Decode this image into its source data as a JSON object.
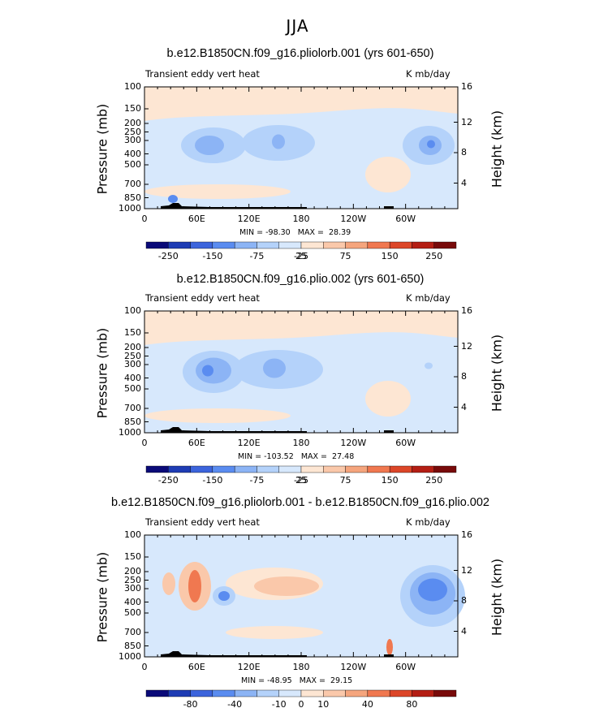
{
  "suptitle": "JJA",
  "colorbar_colors": [
    "#0a0a78",
    "#1e3cb4",
    "#3c64dc",
    "#5a8cf0",
    "#8cb4f5",
    "#b4d2fa",
    "#d7e8fc",
    "#fde6d3",
    "#fac8aa",
    "#f5a57d",
    "#f07850",
    "#dc4628",
    "#b41e14",
    "#780a0a"
  ],
  "chart_data": [
    {
      "type": "contour",
      "title": "b.e12.B1850CN.f09_g16.pliolorb.001 (yrs 601-650)",
      "left_label": "Transient eddy vert heat",
      "right_label": "K mb/day",
      "ylabel": "Pressure (mb)",
      "ylabel_right": "Height (km)",
      "y_ticks": [
        "100",
        "150",
        "200",
        "250",
        "300",
        "400",
        "500",
        "700",
        "850",
        "1000"
      ],
      "z_ticks": [
        "16",
        "12",
        "8",
        "4"
      ],
      "x_ticks": [
        "0",
        "60E",
        "120E",
        "180",
        "120W",
        "60W"
      ],
      "min_max": "MIN = -98.30   MAX =  28.39",
      "colorbar_labels": [
        "-250",
        "-150",
        "-75",
        "-25",
        "25",
        "75",
        "150",
        "250"
      ]
    },
    {
      "type": "contour",
      "title": "b.e12.B1850CN.f09_g16.plio.002 (yrs 601-650)",
      "left_label": "Transient eddy vert heat",
      "right_label": "K mb/day",
      "ylabel": "Pressure (mb)",
      "ylabel_right": "Height (km)",
      "y_ticks": [
        "100",
        "150",
        "200",
        "250",
        "300",
        "400",
        "500",
        "700",
        "850",
        "1000"
      ],
      "z_ticks": [
        "16",
        "12",
        "8",
        "4"
      ],
      "x_ticks": [
        "0",
        "60E",
        "120E",
        "180",
        "120W",
        "60W"
      ],
      "min_max": "MIN = -103.52   MAX =  27.48",
      "colorbar_labels": [
        "-250",
        "-150",
        "-75",
        "-25",
        "25",
        "75",
        "150",
        "250"
      ]
    },
    {
      "type": "contour",
      "title": "b.e12.B1850CN.f09_g16.pliolorb.001 - b.e12.B1850CN.f09_g16.plio.002",
      "left_label": "Transient eddy vert heat",
      "right_label": "K mb/day",
      "ylabel": "Pressure (mb)",
      "ylabel_right": "Height (km)",
      "y_ticks": [
        "100",
        "150",
        "200",
        "250",
        "300",
        "400",
        "500",
        "700",
        "850",
        "1000"
      ],
      "z_ticks": [
        "16",
        "12",
        "8",
        "4"
      ],
      "x_ticks": [
        "0",
        "60E",
        "120E",
        "180",
        "120W",
        "60W"
      ],
      "min_max": "MIN = -48.95   MAX =  29.15",
      "colorbar_labels": [
        "-80",
        "-40",
        "-10",
        "0",
        "10",
        "40",
        "80"
      ]
    }
  ]
}
